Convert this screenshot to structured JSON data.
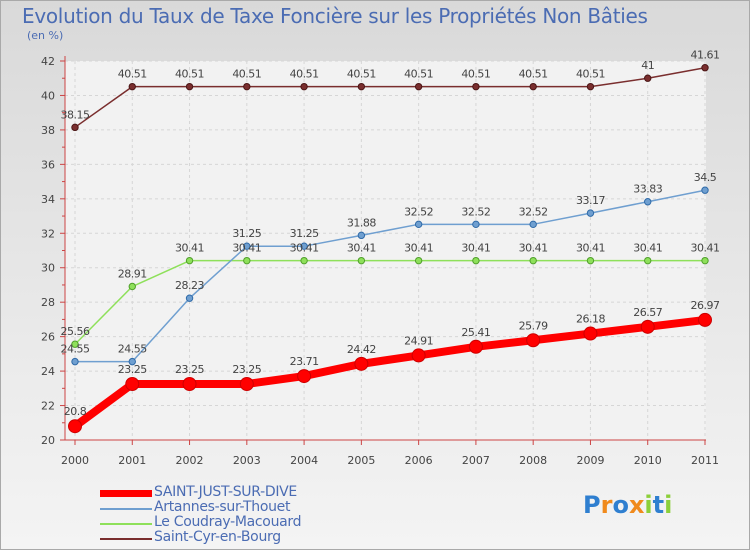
{
  "chart_data": {
    "type": "line",
    "title": "Evolution du Taux de Taxe Foncière sur les Propriétés Non Bâties",
    "ylabel": "(en %)",
    "xlabel": "",
    "x": [
      "2000",
      "2001",
      "2002",
      "2003",
      "2004",
      "2005",
      "2006",
      "2007",
      "2008",
      "2009",
      "2010",
      "2011"
    ],
    "ylim": [
      20,
      42
    ],
    "yticks": [
      "20",
      "22",
      "24",
      "26",
      "28",
      "30",
      "32",
      "34",
      "36",
      "38",
      "40",
      "42"
    ],
    "grid": true,
    "series": [
      {
        "name": "SAINT-JUST-SUR-DIVE",
        "color": "#ff0000",
        "values": [
          20.8,
          23.25,
          23.25,
          23.25,
          23.71,
          24.42,
          24.91,
          25.41,
          25.79,
          26.18,
          26.57,
          26.97
        ],
        "labels": [
          "20.8",
          "23.25",
          "23.25",
          "23.25",
          "23.71",
          "24.42",
          "24.91",
          "25.41",
          "25.79",
          "26.18",
          "26.57",
          "26.97"
        ]
      },
      {
        "name": "Artannes-sur-Thouet",
        "color": "#6f9fd0",
        "values": [
          24.55,
          24.55,
          28.23,
          31.25,
          31.25,
          31.88,
          32.52,
          32.52,
          32.52,
          33.17,
          33.83,
          34.5
        ],
        "labels": [
          "24.55",
          "24.55",
          "28.23",
          "31.25",
          "31.25",
          "31.88",
          "32.52",
          "32.52",
          "32.52",
          "33.17",
          "33.83",
          "34.5"
        ]
      },
      {
        "name": "Le Coudray-Macouard",
        "color": "#8ee05a",
        "values": [
          25.56,
          28.91,
          30.41,
          30.41,
          30.41,
          30.41,
          30.41,
          30.41,
          30.41,
          30.41,
          30.41,
          30.41
        ],
        "labels": [
          "25.56",
          "28.91",
          "30.41",
          "30.41",
          "30.41",
          "30.41",
          "30.41",
          "30.41",
          "30.41",
          "30.41",
          "30.41",
          "30.41"
        ]
      },
      {
        "name": "Saint-Cyr-en-Bourg",
        "color": "#7a2e2e",
        "values": [
          38.15,
          40.51,
          40.51,
          40.51,
          40.51,
          40.51,
          40.51,
          40.51,
          40.51,
          40.51,
          41,
          41.61
        ],
        "labels": [
          "38.15",
          "40.51",
          "40.51",
          "40.51",
          "40.51",
          "40.51",
          "40.51",
          "40.51",
          "40.51",
          "40.51",
          "41",
          "41.61"
        ]
      }
    ]
  },
  "legend": [
    {
      "label": "SAINT-JUST-SUR-DIVE"
    },
    {
      "label": "Artannes-sur-Thouet"
    },
    {
      "label": "Le Coudray-Macouard"
    },
    {
      "label": "Saint-Cyr-en-Bourg"
    }
  ],
  "logo": {
    "letters": [
      "P",
      "r",
      "o",
      "x",
      "i",
      "t",
      "i"
    ],
    "colors": [
      "#2f7fd0",
      "#f08a1c",
      "#2f7fd0",
      "#f08a1c",
      "#8ccf3a",
      "#2f7fd0",
      "#8ccf3a"
    ]
  }
}
